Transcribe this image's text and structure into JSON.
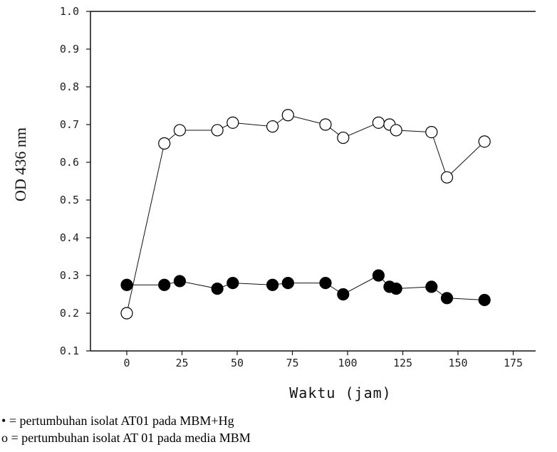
{
  "chart_data": {
    "type": "line",
    "xlabel": "Waktu (jam)",
    "ylabel": "OD 436 nm",
    "xlim": [
      -10,
      175
    ],
    "ylim": [
      0.1,
      1.0
    ],
    "x_ticks": [
      "0",
      "25",
      "50",
      "75",
      "100",
      "125",
      "150",
      "175"
    ],
    "x_tick_values": [
      0,
      25,
      50,
      75,
      100,
      125,
      150,
      175
    ],
    "y_ticks": [
      "0.1",
      "0.2",
      "0.3",
      "0.4",
      "0.5",
      "0.6",
      "0.7",
      "0.8",
      "0.9",
      "1.0"
    ],
    "y_tick_values": [
      0.1,
      0.2,
      0.3,
      0.4,
      0.5,
      0.6,
      0.7,
      0.8,
      0.9,
      1.0
    ],
    "grid": false,
    "series": [
      {
        "marker": "open-circle",
        "x": [
          0,
          17,
          24,
          41,
          48,
          66,
          73,
          90,
          98,
          114,
          119,
          122,
          138,
          145,
          162
        ],
        "y": [
          0.2,
          0.65,
          0.685,
          0.685,
          0.705,
          0.695,
          0.725,
          0.7,
          0.665,
          0.705,
          0.7,
          0.685,
          0.68,
          0.56,
          0.655
        ]
      },
      {
        "marker": "filled-circle",
        "x": [
          0,
          17,
          24,
          41,
          48,
          66,
          73,
          90,
          98,
          114,
          119,
          122,
          138,
          145,
          162
        ],
        "y": [
          0.275,
          0.275,
          0.285,
          0.265,
          0.28,
          0.275,
          0.28,
          0.28,
          0.25,
          0.3,
          0.27,
          0.265,
          0.27,
          0.24,
          0.235
        ]
      }
    ]
  },
  "legend": [
    {
      "symbol": "•",
      "text": "= pertumbuhan isolat AT01 pada MBM+Hg"
    },
    {
      "symbol": "o",
      "text": "= pertumbuhan isolat AT 01 pada media MBM"
    }
  ]
}
